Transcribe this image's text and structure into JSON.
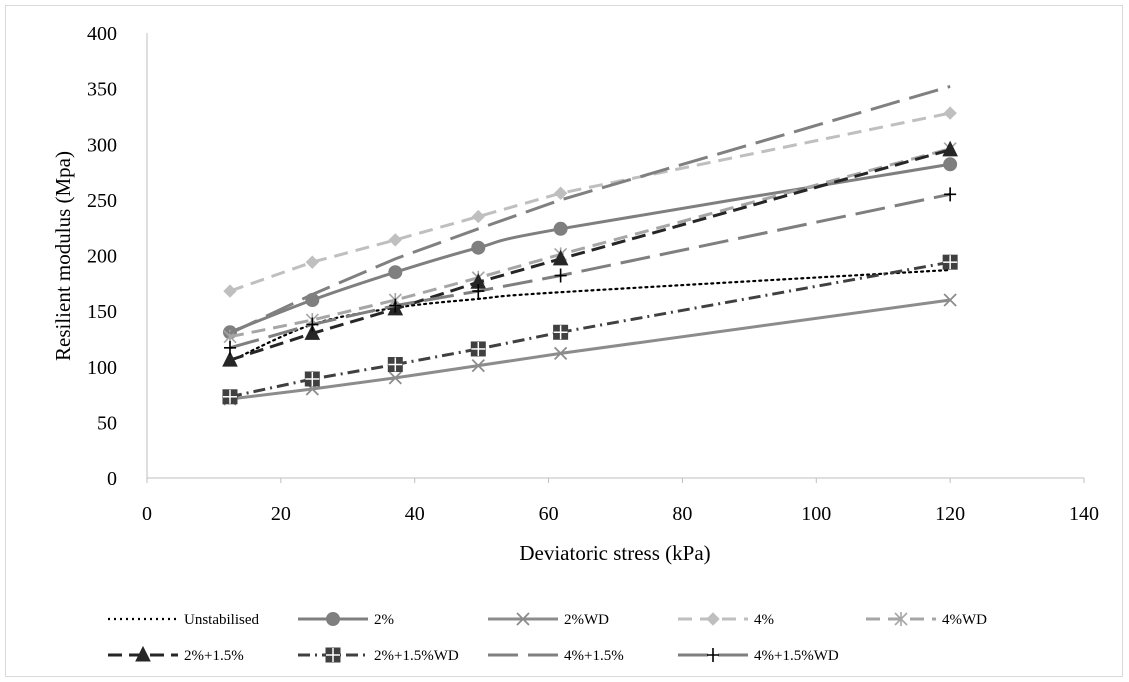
{
  "chart_data": {
    "type": "line",
    "title": "",
    "xlabel": "Deviatoric stress (kPa)",
    "ylabel": "Resilient modulus (Mpa)",
    "xlim": [
      0,
      140
    ],
    "ylim": [
      0,
      400
    ],
    "xticks": [
      0,
      20,
      40,
      60,
      80,
      100,
      120,
      140
    ],
    "yticks": [
      0,
      50,
      100,
      150,
      200,
      250,
      300,
      350,
      400
    ],
    "grid": false,
    "legend_position": "bottom",
    "series": [
      {
        "name": "Unstabilised",
        "color": "#000000",
        "dash": "2 4",
        "width": 2.2,
        "marker": "none",
        "smooth": true,
        "x": [
          12.4,
          24.7,
          37.1,
          49.5,
          61.8,
          120
        ],
        "y": [
          105,
          138,
          153,
          161,
          167,
          187
        ]
      },
      {
        "name": "2%",
        "color": "#7f7f7f",
        "dash": "",
        "width": 3,
        "marker": "circle",
        "smooth": true,
        "x": [
          12.4,
          24.7,
          37.1,
          49.5,
          61.8,
          120
        ],
        "y": [
          131,
          160,
          185,
          207,
          224,
          282
        ]
      },
      {
        "name": "2%WD",
        "color": "#8c8c8c",
        "dash": "",
        "width": 3,
        "marker": "x",
        "x": [
          12.4,
          24.7,
          37.1,
          49.5,
          61.8,
          120
        ],
        "y": [
          71,
          80,
          90,
          101,
          112,
          160
        ]
      },
      {
        "name": "4%",
        "color": "#bfbfbf",
        "dash": "14 8",
        "width": 3,
        "marker": "diamond",
        "x": [
          12.4,
          24.7,
          37.1,
          49.5,
          61.8,
          120
        ],
        "y": [
          168,
          194,
          214,
          235,
          256,
          328
        ]
      },
      {
        "name": "4%WD",
        "color": "#a6a6a6",
        "dash": "14 8",
        "width": 3,
        "marker": "asterisk",
        "x": [
          12.4,
          24.7,
          37.1,
          49.5,
          61.8,
          120
        ],
        "y": [
          127,
          142,
          160,
          180,
          201,
          296
        ]
      },
      {
        "name": "2%+1.5%",
        "color": "#262626",
        "dash": "14 7",
        "width": 3,
        "marker": "triangle",
        "x": [
          12.4,
          24.7,
          37.1,
          49.5,
          61.8,
          120
        ],
        "y": [
          106,
          130,
          152,
          176,
          197,
          295
        ]
      },
      {
        "name": "2%+1.5%WD",
        "color": "#404040",
        "dash": "12 5 2 5",
        "width": 3,
        "marker": "square",
        "x": [
          12.4,
          24.7,
          37.1,
          49.5,
          61.8,
          120
        ],
        "y": [
          73,
          89,
          102,
          116,
          131,
          194
        ]
      },
      {
        "name": "4%+1.5%",
        "color": "#808080",
        "dash": "30 10",
        "width": 3,
        "marker": "none",
        "x": [
          12.4,
          24.7,
          37.1,
          49.5,
          61.8,
          120
        ],
        "y": [
          130,
          165,
          197,
          224,
          250,
          352
        ]
      },
      {
        "name": "4%+1.5%WD",
        "color": "#7f7f7f",
        "dash": "30 10",
        "width": 3,
        "marker": "plus",
        "x": [
          12.4,
          24.7,
          37.1,
          49.5,
          61.8,
          120
        ],
        "y": [
          117,
          138,
          155,
          168,
          182,
          255
        ]
      }
    ]
  }
}
